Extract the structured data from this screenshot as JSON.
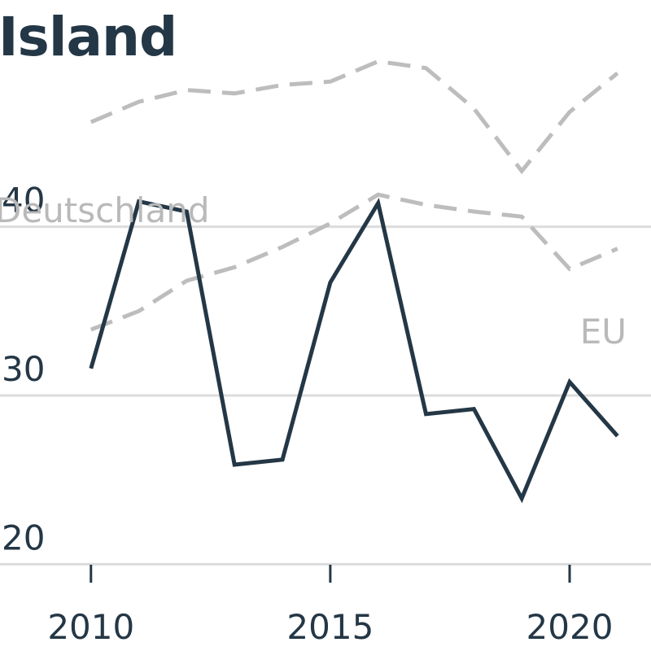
{
  "title": "Island",
  "chart_data": {
    "type": "line",
    "title": "Island",
    "xlabel": "",
    "ylabel": "",
    "x_ticks": [
      2010,
      2015,
      2020
    ],
    "y_ticks": [
      20,
      30,
      40
    ],
    "xlim": [
      2008.1,
      2021.7
    ],
    "ylim": [
      19.2,
      50.3
    ],
    "grid": true,
    "series": [
      {
        "name": "Island",
        "color": "#243746",
        "style": "solid",
        "x": [
          2010,
          2011,
          2012,
          2013,
          2014,
          2015,
          2016,
          2017,
          2018,
          2019,
          2020,
          2021
        ],
        "values": [
          31.6,
          41.5,
          40.9,
          25.9,
          26.2,
          36.7,
          41.4,
          28.9,
          29.2,
          23.9,
          30.8,
          27.6
        ]
      },
      {
        "name": "Deutschland",
        "color": "#bdbdbd",
        "style": "dashed",
        "x": [
          2010,
          2011,
          2012,
          2013,
          2014,
          2015,
          2016,
          2017,
          2018,
          2019,
          2020,
          2021
        ],
        "values": [
          46.2,
          47.4,
          48.1,
          47.9,
          48.4,
          48.6,
          49.8,
          49.4,
          47.0,
          43.3,
          46.8,
          49.1
        ]
      },
      {
        "name": "EU",
        "color": "#bdbdbd",
        "style": "dashed",
        "x": [
          2010,
          2011,
          2012,
          2013,
          2014,
          2015,
          2016,
          2017,
          2018,
          2019,
          2020,
          2021
        ],
        "values": [
          33.9,
          35.0,
          36.8,
          37.6,
          38.8,
          40.2,
          41.9,
          41.3,
          40.9,
          40.6,
          37.5,
          38.7
        ]
      }
    ],
    "series_labels": [
      {
        "text": "Deutschland",
        "series": "Deutschland"
      },
      {
        "text": "EU",
        "series": "EU"
      }
    ]
  }
}
